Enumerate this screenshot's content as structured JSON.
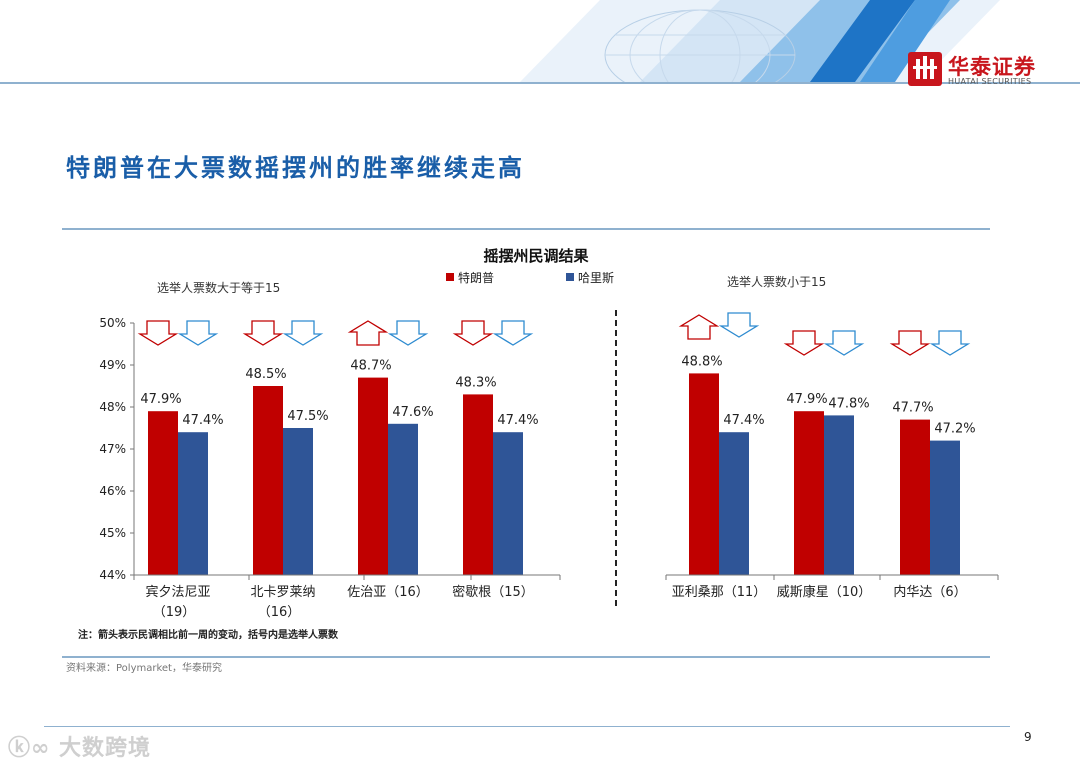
{
  "header": {
    "logo_cn": "华泰证券",
    "logo_en": "HUATAI SECURITIES"
  },
  "slide_title": "特朗普在大票数摇摆州的胜率继续走高",
  "chart_data": {
    "type": "bar",
    "title": "摇摆州民调结果",
    "series": [
      {
        "name": "特朗普",
        "color": "#c00000",
        "values": [
          47.9,
          48.5,
          48.7,
          48.3,
          48.8,
          47.9,
          47.7
        ]
      },
      {
        "name": "哈里斯",
        "color": "#2f5597",
        "values": [
          47.4,
          47.5,
          47.6,
          47.4,
          47.4,
          47.8,
          47.2
        ]
      }
    ],
    "value_labels": {
      "trump": [
        "47.9%",
        "48.5%",
        "48.7%",
        "48.3%",
        "48.8%",
        "47.9%",
        "47.7%"
      ],
      "harris": [
        "47.4%",
        "47.5%",
        "47.6%",
        "47.4%",
        "47.4%",
        "47.8%",
        "47.2%"
      ]
    },
    "categories": [
      {
        "line1": "宾夕法尼亚",
        "line2": "（19）"
      },
      {
        "line1": "北卡罗莱纳",
        "line2": "（16）"
      },
      {
        "line1": "佐治亚（16）",
        "line2": ""
      },
      {
        "line1": "密歇根（15）",
        "line2": ""
      },
      {
        "line1": "亚利桑那（11）",
        "line2": ""
      },
      {
        "line1": "威斯康星（10）",
        "line2": ""
      },
      {
        "line1": "内华达（6）",
        "line2": ""
      }
    ],
    "group_labels": [
      "选举人票数大于等于15",
      "选举人票数小于15"
    ],
    "ylim": [
      44,
      50
    ],
    "yticks": [
      "44%",
      "45%",
      "46%",
      "47%",
      "48%",
      "49%",
      "50%"
    ],
    "arrows": {
      "trump": [
        "down",
        "down",
        "up",
        "down",
        "up",
        "down",
        "down"
      ],
      "harris": [
        "down",
        "down",
        "down",
        "down",
        "down",
        "down",
        "down"
      ]
    },
    "legend": "top"
  },
  "note": "注：箭头表示民调相比前一周的变动，括号内是选举人票数",
  "source": "资料来源：Polymarket，华泰研究",
  "watermark": "大数跨境",
  "page_number": "9"
}
